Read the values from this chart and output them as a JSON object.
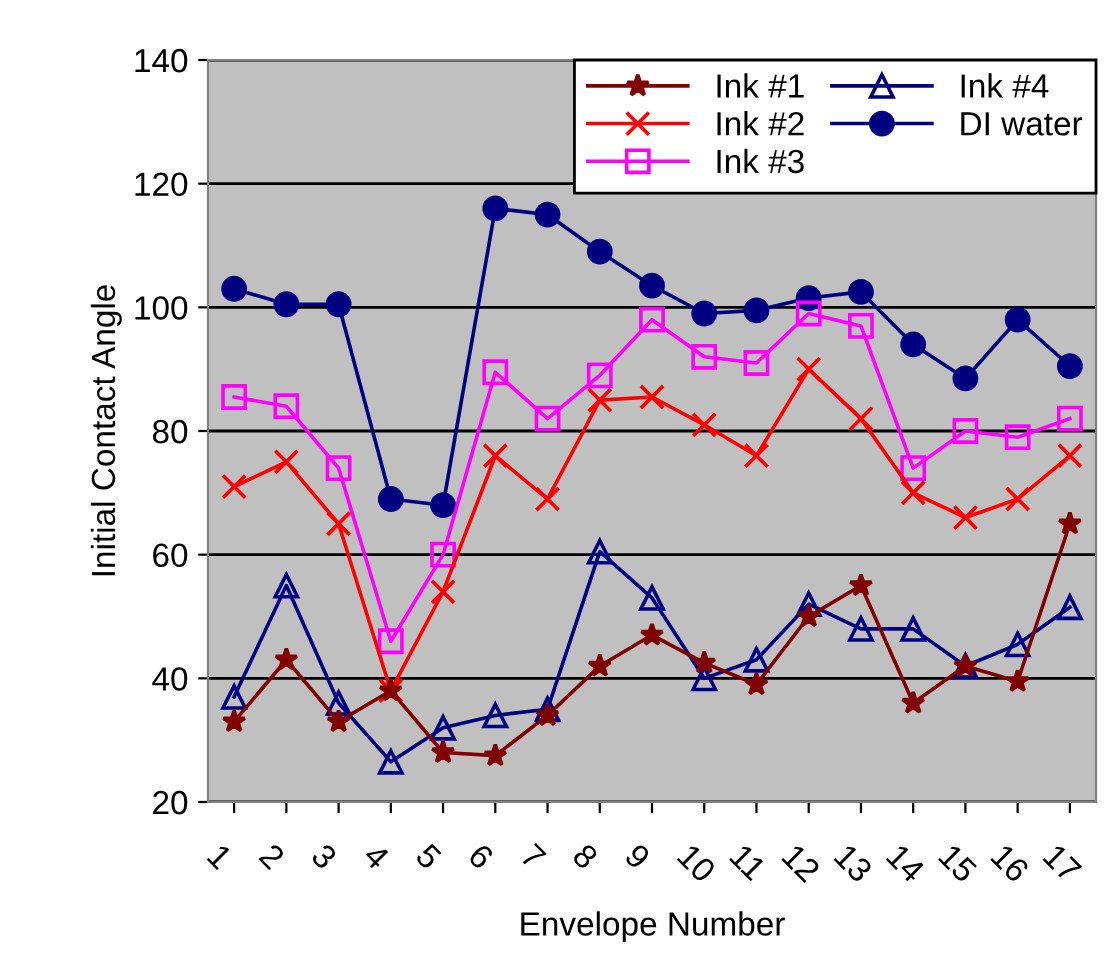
{
  "chart_data": {
    "type": "line",
    "xlabel": "Envelope Number",
    "ylabel": "Initial Contact Angle",
    "categories": [
      "1",
      "2",
      "3",
      "4",
      "5",
      "6",
      "7",
      "8",
      "9",
      "10",
      "11",
      "12",
      "13",
      "14",
      "15",
      "16",
      "17"
    ],
    "ylim": [
      20,
      140
    ],
    "yticks": [
      20,
      40,
      60,
      80,
      100,
      120,
      140
    ],
    "grid": "y",
    "legend": "top right",
    "series": [
      {
        "name": "Ink #1",
        "color": "#800000",
        "marker": "star",
        "values": [
          33,
          43,
          33,
          38,
          28,
          27.5,
          34,
          42,
          47,
          42.5,
          39,
          50,
          55,
          36,
          42,
          39.5,
          65
        ]
      },
      {
        "name": "Ink #2",
        "color": "#ff0000",
        "marker": "cross",
        "values": [
          71,
          75,
          65,
          38,
          54,
          76,
          69,
          85,
          85.5,
          81,
          76,
          90,
          82,
          70,
          66,
          69,
          76
        ]
      },
      {
        "name": "Ink #3",
        "color": "#ff00ff",
        "marker": "square",
        "values": [
          85.5,
          84,
          74,
          46,
          60,
          89.5,
          82,
          89,
          98,
          92,
          91,
          99,
          97,
          74,
          80,
          79,
          82
        ]
      },
      {
        "name": "Ink #4",
        "color": "#000080",
        "marker": "triangle",
        "values": [
          37,
          55,
          36,
          26.5,
          32,
          34,
          35,
          60.5,
          53,
          40,
          43,
          52,
          48,
          48,
          42,
          45.5,
          51.5
        ]
      },
      {
        "name": "DI water",
        "color": "#000080",
        "marker": "circle",
        "values": [
          103,
          100.5,
          100.5,
          69,
          68,
          116,
          115,
          109,
          103.5,
          99,
          99.5,
          101.5,
          102.5,
          94,
          88.5,
          98,
          90.5
        ]
      }
    ]
  }
}
